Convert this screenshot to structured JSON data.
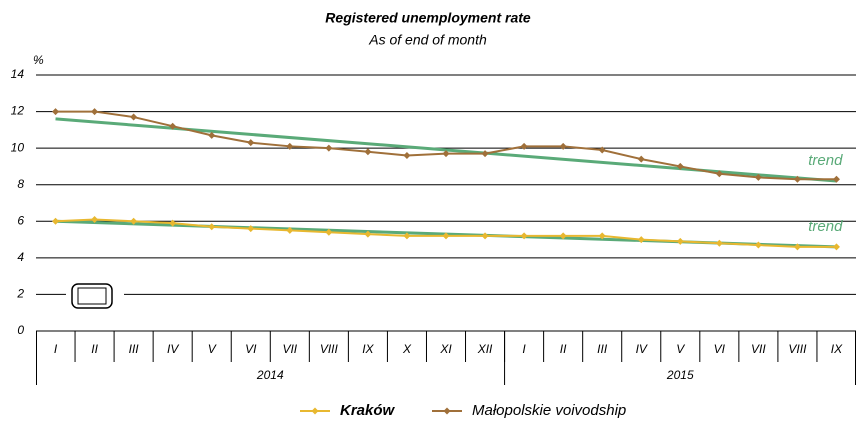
{
  "chart_data": {
    "type": "line",
    "title": "Registered unemployment rate",
    "subtitle": "As of end of month",
    "y_unit": "%",
    "categories": [
      "I",
      "II",
      "III",
      "IV",
      "V",
      "VI",
      "VII",
      "VIII",
      "IX",
      "X",
      "XI",
      "XII",
      "I",
      "II",
      "III",
      "IV",
      "V",
      "VI",
      "VII",
      "VIII",
      "IX"
    ],
    "x_groups": [
      {
        "label": "2014",
        "count": 12
      },
      {
        "label": "2015",
        "count": 9
      }
    ],
    "series": [
      {
        "name": "Kraków",
        "color": "#e8b830",
        "values": [
          6.0,
          6.1,
          6.0,
          5.9,
          5.7,
          5.6,
          5.5,
          5.4,
          5.3,
          5.2,
          5.2,
          5.2,
          5.2,
          5.2,
          5.2,
          5.0,
          4.9,
          4.8,
          4.7,
          4.6,
          4.6
        ]
      },
      {
        "name": "Małopolskie voivodship",
        "color": "#a0703a",
        "values": [
          12.0,
          12.0,
          11.7,
          11.2,
          10.7,
          10.3,
          10.1,
          10.0,
          9.8,
          9.6,
          9.7,
          9.7,
          10.1,
          10.1,
          9.9,
          9.4,
          9.0,
          8.6,
          8.4,
          8.3,
          8.3
        ]
      }
    ],
    "trends": [
      {
        "label": "trend",
        "color": "#5aaa78",
        "start": 6.0,
        "end": 4.6
      },
      {
        "label": "trend",
        "color": "#5aaa78",
        "start": 11.6,
        "end": 8.2
      }
    ],
    "ylim": [
      0,
      14
    ],
    "yticks": [
      0,
      2,
      4,
      6,
      8,
      10,
      12,
      14
    ],
    "grid": true
  }
}
